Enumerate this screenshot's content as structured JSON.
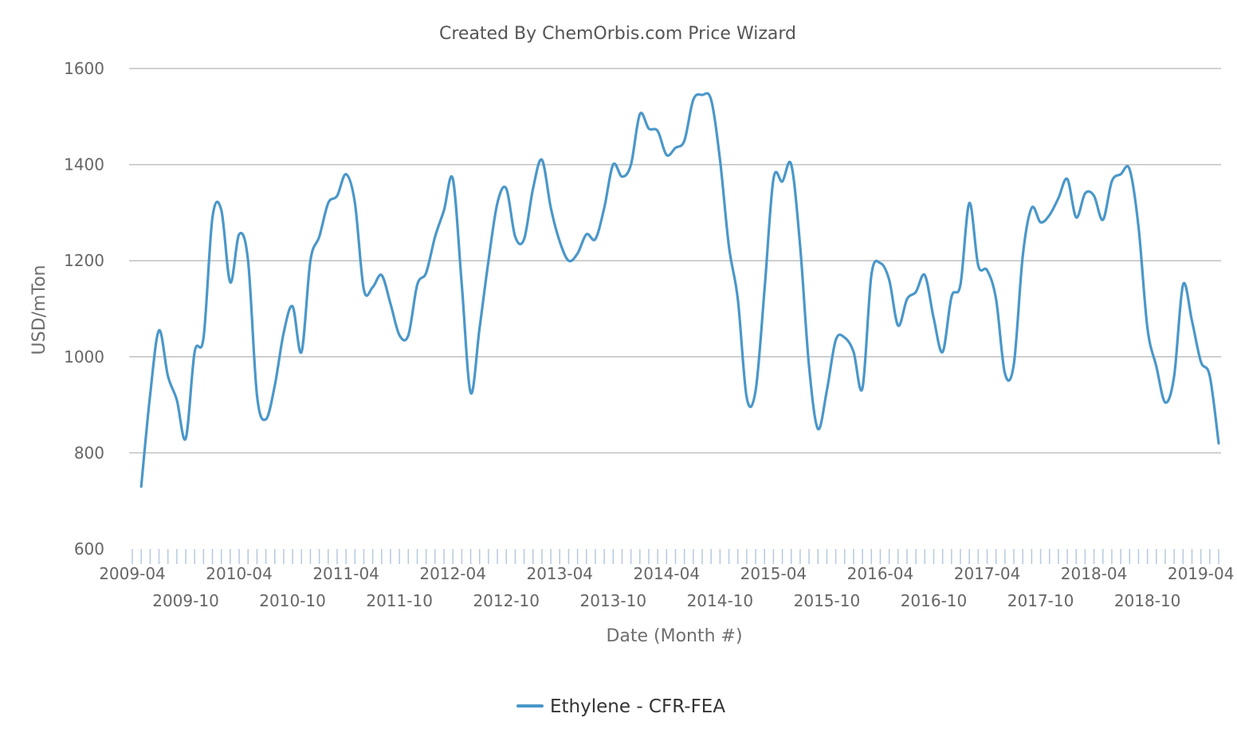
{
  "chart_data": {
    "type": "line",
    "title": "Created By ChemOrbis.com Price Wizard",
    "xlabel": "Date (Month #)",
    "ylabel": "USD/mTon",
    "ylim": [
      600,
      1600
    ],
    "yticks": [
      600,
      800,
      1000,
      1200,
      1400,
      1600
    ],
    "grid": true,
    "legend_position": "bottom-center",
    "x_start": "2009-04",
    "x_end": "2019-04",
    "xtick_labels": [
      "2009-04",
      "2009-10",
      "2010-04",
      "2010-10",
      "2011-04",
      "2011-10",
      "2012-04",
      "2012-10",
      "2013-04",
      "2013-10",
      "2014-04",
      "2014-10",
      "2015-04",
      "2015-10",
      "2016-04",
      "2016-10",
      "2017-04",
      "2017-10",
      "2018-04",
      "2018-10",
      "2019-04"
    ],
    "series": [
      {
        "name": "Ethylene - CFR-FEA",
        "color": "#4a97c9",
        "points": [
          [
            "2009-05",
            730
          ],
          [
            "2009-06",
            920
          ],
          [
            "2009-07",
            1055
          ],
          [
            "2009-08",
            960
          ],
          [
            "2009-09",
            910
          ],
          [
            "2009-10",
            830
          ],
          [
            "2009-11",
            1010
          ],
          [
            "2009-12",
            1040
          ],
          [
            "2010-01",
            1290
          ],
          [
            "2010-02",
            1305
          ],
          [
            "2010-03",
            1155
          ],
          [
            "2010-04",
            1255
          ],
          [
            "2010-05",
            1200
          ],
          [
            "2010-06",
            920
          ],
          [
            "2010-07",
            870
          ],
          [
            "2010-08",
            940
          ],
          [
            "2010-09",
            1050
          ],
          [
            "2010-10",
            1105
          ],
          [
            "2010-11",
            1010
          ],
          [
            "2010-12",
            1200
          ],
          [
            "2011-01",
            1250
          ],
          [
            "2011-02",
            1320
          ],
          [
            "2011-03",
            1335
          ],
          [
            "2011-04",
            1380
          ],
          [
            "2011-05",
            1320
          ],
          [
            "2011-06",
            1140
          ],
          [
            "2011-07",
            1145
          ],
          [
            "2011-08",
            1170
          ],
          [
            "2011-09",
            1110
          ],
          [
            "2011-10",
            1045
          ],
          [
            "2011-11",
            1045
          ],
          [
            "2011-12",
            1150
          ],
          [
            "2012-01",
            1175
          ],
          [
            "2012-02",
            1250
          ],
          [
            "2012-03",
            1305
          ],
          [
            "2012-04",
            1370
          ],
          [
            "2012-05",
            1150
          ],
          [
            "2012-06",
            925
          ],
          [
            "2012-07",
            1060
          ],
          [
            "2012-08",
            1200
          ],
          [
            "2012-09",
            1320
          ],
          [
            "2012-10",
            1350
          ],
          [
            "2012-11",
            1250
          ],
          [
            "2012-12",
            1245
          ],
          [
            "2013-01",
            1350
          ],
          [
            "2013-02",
            1410
          ],
          [
            "2013-03",
            1310
          ],
          [
            "2013-04",
            1240
          ],
          [
            "2013-05",
            1200
          ],
          [
            "2013-06",
            1215
          ],
          [
            "2013-07",
            1255
          ],
          [
            "2013-08",
            1245
          ],
          [
            "2013-09",
            1310
          ],
          [
            "2013-10",
            1400
          ],
          [
            "2013-11",
            1375
          ],
          [
            "2013-12",
            1400
          ],
          [
            "2014-01",
            1505
          ],
          [
            "2014-02",
            1475
          ],
          [
            "2014-03",
            1470
          ],
          [
            "2014-04",
            1420
          ],
          [
            "2014-05",
            1435
          ],
          [
            "2014-06",
            1450
          ],
          [
            "2014-07",
            1535
          ],
          [
            "2014-08",
            1545
          ],
          [
            "2014-09",
            1535
          ],
          [
            "2014-10",
            1410
          ],
          [
            "2014-11",
            1230
          ],
          [
            "2014-12",
            1120
          ],
          [
            "2015-01",
            915
          ],
          [
            "2015-02",
            930
          ],
          [
            "2015-03",
            1140
          ],
          [
            "2015-04",
            1370
          ],
          [
            "2015-05",
            1365
          ],
          [
            "2015-06",
            1400
          ],
          [
            "2015-07",
            1230
          ],
          [
            "2015-08",
            980
          ],
          [
            "2015-09",
            850
          ],
          [
            "2015-10",
            930
          ],
          [
            "2015-11",
            1035
          ],
          [
            "2015-12",
            1040
          ],
          [
            "2016-01",
            1010
          ],
          [
            "2016-02",
            935
          ],
          [
            "2016-03",
            1170
          ],
          [
            "2016-04",
            1195
          ],
          [
            "2016-05",
            1160
          ],
          [
            "2016-06",
            1065
          ],
          [
            "2016-07",
            1120
          ],
          [
            "2016-08",
            1135
          ],
          [
            "2016-09",
            1170
          ],
          [
            "2016-10",
            1080
          ],
          [
            "2016-11",
            1010
          ],
          [
            "2016-12",
            1125
          ],
          [
            "2017-01",
            1150
          ],
          [
            "2017-02",
            1320
          ],
          [
            "2017-03",
            1190
          ],
          [
            "2017-04",
            1180
          ],
          [
            "2017-05",
            1120
          ],
          [
            "2017-06",
            965
          ],
          [
            "2017-07",
            985
          ],
          [
            "2017-08",
            1210
          ],
          [
            "2017-09",
            1310
          ],
          [
            "2017-10",
            1280
          ],
          [
            "2017-11",
            1295
          ],
          [
            "2017-12",
            1330
          ],
          [
            "2018-01",
            1370
          ],
          [
            "2018-02",
            1290
          ],
          [
            "2018-03",
            1340
          ],
          [
            "2018-04",
            1335
          ],
          [
            "2018-05",
            1285
          ],
          [
            "2018-06",
            1365
          ],
          [
            "2018-07",
            1380
          ],
          [
            "2018-08",
            1390
          ],
          [
            "2018-09",
            1270
          ],
          [
            "2018-10",
            1060
          ],
          [
            "2018-11",
            980
          ],
          [
            "2018-12",
            905
          ],
          [
            "2019-01",
            960
          ],
          [
            "2019-02",
            1150
          ],
          [
            "2019-03",
            1075
          ],
          [
            "2019-04",
            990
          ],
          [
            "2019-05",
            960
          ],
          [
            "2019-06",
            820
          ]
        ]
      }
    ]
  }
}
